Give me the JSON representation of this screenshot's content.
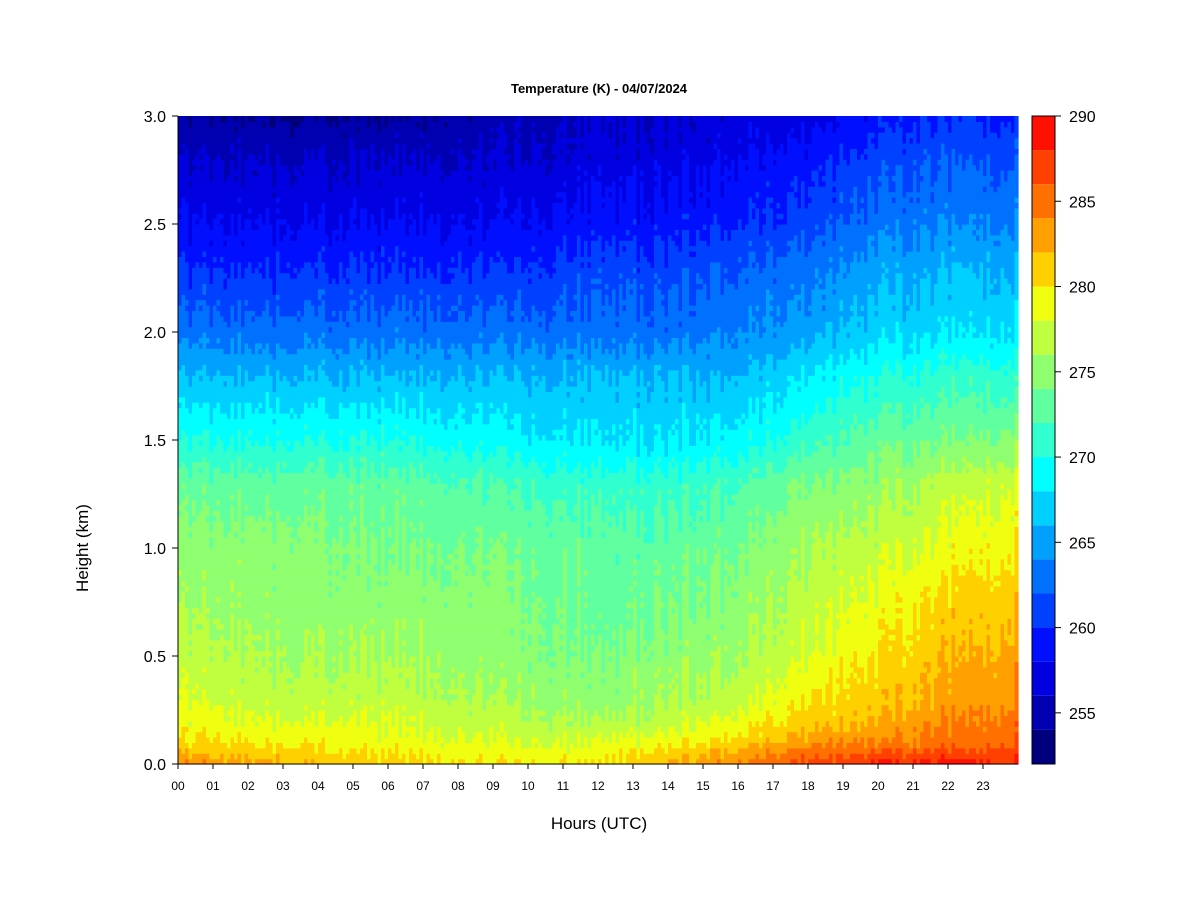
{
  "chart_data": {
    "type": "heatmap",
    "title": "Temperature (K) - 04/07/2024",
    "xlabel": "Hours (UTC)",
    "ylabel": "Height (km)",
    "x_ticks": [
      "00",
      "01",
      "02",
      "03",
      "04",
      "05",
      "06",
      "07",
      "08",
      "09",
      "10",
      "11",
      "12",
      "13",
      "14",
      "15",
      "16",
      "17",
      "18",
      "19",
      "20",
      "21",
      "22",
      "23"
    ],
    "y_ticks": [
      "0.0",
      "0.5",
      "1.0",
      "1.5",
      "2.0",
      "2.5",
      "3.0"
    ],
    "xlim": [
      0,
      24
    ],
    "ylim": [
      0,
      3.0
    ],
    "colorbar": {
      "min": 252,
      "max": 290,
      "step": 2,
      "tick_values": [
        255,
        260,
        265,
        270,
        275,
        280,
        285,
        290
      ],
      "tick_labels": [
        "255",
        "260",
        "265",
        "270",
        "275",
        "280",
        "285",
        "290"
      ],
      "colors": [
        "#00007F",
        "#0000B0",
        "#0000E0",
        "#0010FF",
        "#0040FF",
        "#0070FF",
        "#00A0FF",
        "#00D0FF",
        "#00FFFF",
        "#30FFCF",
        "#60FF9F",
        "#90FF6F",
        "#C0FF3F",
        "#F0FF0F",
        "#FFD000",
        "#FFA000",
        "#FF7000",
        "#FF4000",
        "#FF1000",
        "#C00000",
        "#800000"
      ]
    },
    "profiles": {
      "heights_km": [
        0.0,
        0.05,
        0.1,
        0.2,
        0.3,
        0.5,
        0.7,
        1.0,
        1.3,
        1.5,
        1.8,
        2.0,
        2.3,
        2.5,
        2.8,
        3.0
      ],
      "columns": [
        {
          "hour": 0,
          "temps_k": [
            284,
            282,
            280,
            279,
            278,
            277,
            276,
            275,
            273,
            270,
            266,
            263,
            260,
            258,
            256,
            254
          ]
        },
        {
          "hour": 3,
          "temps_k": [
            282,
            281,
            280,
            278,
            277,
            276,
            275,
            275,
            273,
            270,
            266,
            263,
            260,
            258,
            256,
            254
          ]
        },
        {
          "hour": 6,
          "temps_k": [
            281,
            280,
            279,
            278,
            277,
            276,
            275,
            274,
            273,
            270,
            266,
            263,
            260,
            258,
            256,
            254
          ]
        },
        {
          "hour": 9,
          "temps_k": [
            280,
            279,
            278,
            277,
            276,
            275,
            275,
            274,
            272,
            269,
            266,
            263,
            260,
            258,
            256,
            255
          ]
        },
        {
          "hour": 12,
          "temps_k": [
            280,
            279,
            278,
            276,
            275,
            274,
            273,
            273,
            271,
            268,
            266,
            263,
            261,
            259,
            257,
            256
          ]
        },
        {
          "hour": 14,
          "temps_k": [
            282,
            281,
            279,
            277,
            276,
            275,
            274,
            273,
            271,
            268,
            266,
            263,
            261,
            259,
            257,
            256
          ]
        },
        {
          "hour": 16,
          "temps_k": [
            284,
            283,
            281,
            279,
            277,
            276,
            275,
            274,
            272,
            269,
            266,
            264,
            262,
            260,
            258,
            257
          ]
        },
        {
          "hour": 18,
          "temps_k": [
            287,
            285,
            283,
            281,
            280,
            278,
            277,
            276,
            274,
            271,
            268,
            265,
            263,
            261,
            259,
            257
          ]
        },
        {
          "hour": 20,
          "temps_k": [
            288,
            286,
            284,
            282,
            281,
            280,
            279,
            277,
            275,
            273,
            270,
            267,
            265,
            263,
            261,
            259
          ]
        },
        {
          "hour": 22,
          "temps_k": [
            289,
            287,
            285,
            284,
            283,
            282,
            281,
            279,
            277,
            274,
            271,
            268,
            266,
            264,
            262,
            260
          ]
        },
        {
          "hour": 24,
          "temps_k": [
            288,
            287,
            286,
            285,
            284,
            283,
            282,
            280,
            278,
            275,
            271,
            268,
            266,
            264,
            262,
            260
          ]
        }
      ]
    }
  }
}
